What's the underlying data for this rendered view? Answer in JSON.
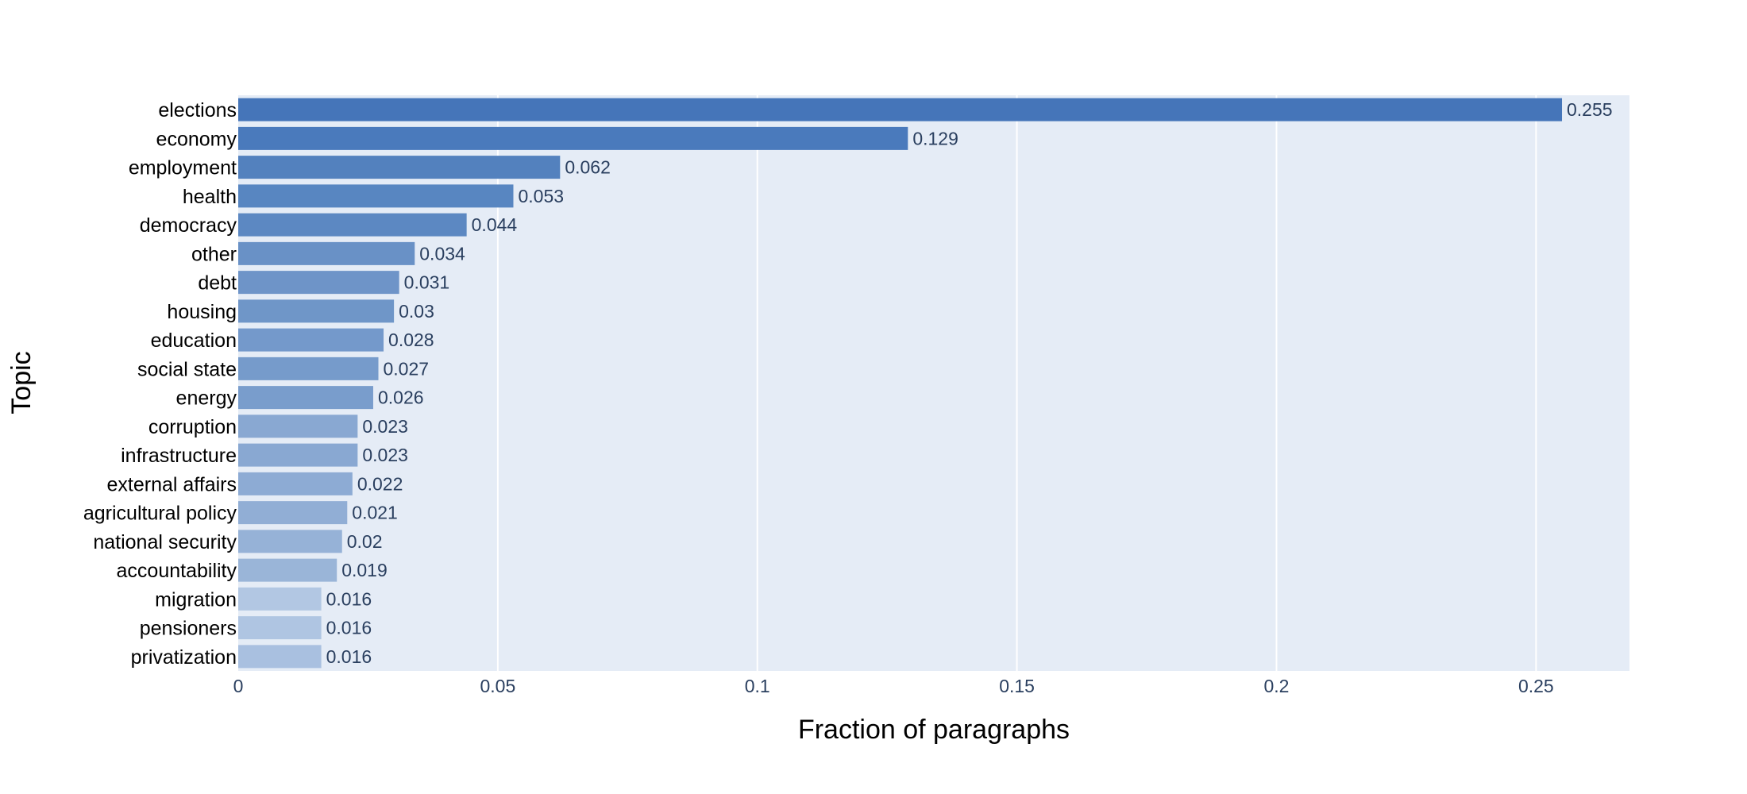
{
  "chart_data": {
    "type": "bar",
    "orientation": "horizontal",
    "title": "",
    "xlabel": "Fraction  of paragraphs",
    "ylabel": "Topic",
    "xlim": [
      0,
      0.268
    ],
    "x_ticks": [
      0,
      0.05,
      0.1,
      0.15,
      0.2,
      0.25
    ],
    "x_tick_labels": [
      "0",
      "0.05",
      "0.1",
      "0.15",
      "0.2",
      "0.25"
    ],
    "grid": true,
    "legend": false,
    "categories": [
      "elections",
      "economy",
      "employment",
      "health",
      "democracy",
      "other",
      "debt",
      "housing",
      "education",
      "social state",
      "energy",
      "corruption",
      "infrastructure",
      "external affairs",
      "agricultural policy",
      "national security",
      "accountability",
      "migration",
      "pensioners",
      "privatization"
    ],
    "values": [
      0.255,
      0.129,
      0.062,
      0.053,
      0.044,
      0.034,
      0.031,
      0.03,
      0.028,
      0.027,
      0.026,
      0.023,
      0.023,
      0.022,
      0.021,
      0.02,
      0.019,
      0.016,
      0.016,
      0.016
    ],
    "value_labels": [
      "0.255",
      "0.129",
      "0.062",
      "0.053",
      "0.044",
      "0.034",
      "0.031",
      "0.03",
      "0.028",
      "0.027",
      "0.026",
      "0.023",
      "0.023",
      "0.022",
      "0.021",
      "0.02",
      "0.019",
      "0.016",
      "0.016",
      "0.016"
    ],
    "bar_colors": [
      "#4575b9",
      "#4a7abc",
      "#5381be",
      "#5886c1",
      "#5c88c2",
      "#6991c6",
      "#6e94c8",
      "#6f96c8",
      "#7499cb",
      "#769bcb",
      "#799dcc",
      "#89a8d2",
      "#89a8d2",
      "#8dabd4",
      "#91aed5",
      "#96b2d7",
      "#9ab5d8",
      "#b2c7e3",
      "#afc5e2",
      "#a9c0e0"
    ],
    "colors": {
      "plot_background": "#e5ecf6",
      "gridline": "#ffffff",
      "tick_text": "#2a3f5f"
    }
  }
}
